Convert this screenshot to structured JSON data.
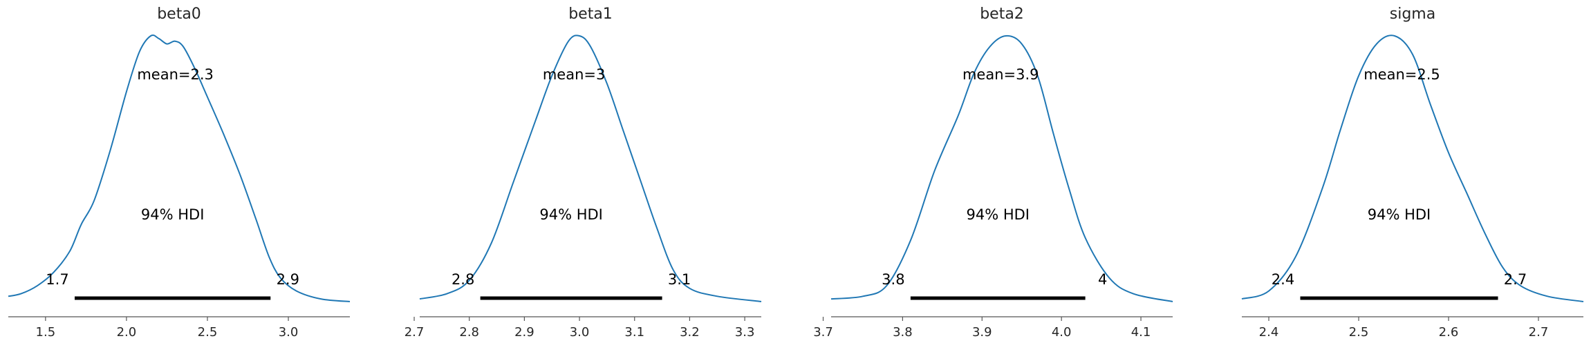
{
  "chart_data": [
    {
      "type": "line",
      "title": "beta0",
      "mean_label": "mean=2.3",
      "hdi_label": "94% HDI",
      "hdi": [
        1.68,
        2.89
      ],
      "hdi_low_label": "1.7",
      "hdi_high_label": "2.9",
      "xlim": [
        1.27,
        3.38
      ],
      "xticks": [
        1.5,
        2.0,
        2.5,
        3.0
      ],
      "xtick_labels": [
        "1.5",
        "2.0",
        "2.5",
        "3.0"
      ],
      "x": [
        1.27,
        1.35,
        1.45,
        1.55,
        1.65,
        1.72,
        1.8,
        1.9,
        2.0,
        2.08,
        2.15,
        2.2,
        2.25,
        2.3,
        2.35,
        2.42,
        2.5,
        2.6,
        2.7,
        2.8,
        2.88,
        2.95,
        3.05,
        3.2,
        3.38
      ],
      "y": [
        0.02,
        0.03,
        0.06,
        0.11,
        0.19,
        0.29,
        0.38,
        0.57,
        0.79,
        0.94,
        1.0,
        0.99,
        0.97,
        0.98,
        0.96,
        0.88,
        0.77,
        0.63,
        0.48,
        0.31,
        0.17,
        0.09,
        0.04,
        0.01,
        0.0
      ],
      "color": "#1f77b4"
    },
    {
      "type": "line",
      "title": "beta1",
      "mean_label": "mean=3",
      "hdi_label": "94% HDI",
      "hdi": [
        2.82,
        3.15
      ],
      "hdi_low_label": "2.8",
      "hdi_high_label": "3.1",
      "xlim": [
        2.71,
        3.33
      ],
      "xticks": [
        2.7,
        2.8,
        2.9,
        3.0,
        3.1,
        3.2,
        3.3
      ],
      "xtick_labels": [
        "2.7",
        "2.8",
        "2.9",
        "3.0",
        "3.1",
        "3.2",
        "3.3"
      ],
      "x": [
        2.71,
        2.76,
        2.8,
        2.84,
        2.88,
        2.92,
        2.95,
        2.98,
        3.0,
        3.02,
        3.05,
        3.08,
        3.11,
        3.14,
        3.17,
        3.2,
        3.25,
        3.33
      ],
      "y": [
        0.01,
        0.03,
        0.08,
        0.22,
        0.45,
        0.68,
        0.85,
        0.98,
        1.0,
        0.96,
        0.82,
        0.64,
        0.46,
        0.28,
        0.12,
        0.05,
        0.02,
        0.0
      ],
      "color": "#1f77b4"
    },
    {
      "type": "line",
      "title": "beta2",
      "mean_label": "mean=3.9",
      "hdi_label": "94% HDI",
      "hdi": [
        3.81,
        4.03
      ],
      "hdi_low_label": "3.8",
      "hdi_high_label": "4",
      "xlim": [
        3.71,
        4.14
      ],
      "xticks": [
        3.7,
        3.8,
        3.9,
        4.0,
        4.1
      ],
      "xtick_labels": [
        "3.7",
        "3.8",
        "3.9",
        "4.0",
        "4.1"
      ],
      "x": [
        3.71,
        3.75,
        3.78,
        3.81,
        3.84,
        3.87,
        3.89,
        3.91,
        3.93,
        3.95,
        3.97,
        3.99,
        4.01,
        4.03,
        4.06,
        4.09,
        4.14
      ],
      "y": [
        0.01,
        0.02,
        0.06,
        0.23,
        0.49,
        0.7,
        0.86,
        0.96,
        1.0,
        0.97,
        0.85,
        0.63,
        0.42,
        0.24,
        0.09,
        0.03,
        0.0
      ],
      "color": "#1f77b4"
    },
    {
      "type": "line",
      "title": "sigma",
      "mean_label": "mean=2.5",
      "hdi_label": "94% HDI",
      "hdi": [
        2.435,
        2.655
      ],
      "hdi_low_label": "2.4",
      "hdi_high_label": "2.7",
      "xlim": [
        2.37,
        2.75
      ],
      "xticks": [
        2.4,
        2.5,
        2.6,
        2.7
      ],
      "xtick_labels": [
        "2.4",
        "2.5",
        "2.6",
        "2.7"
      ],
      "x": [
        2.37,
        2.4,
        2.43,
        2.46,
        2.48,
        2.5,
        2.52,
        2.54,
        2.56,
        2.58,
        2.6,
        2.62,
        2.64,
        2.66,
        2.68,
        2.71,
        2.75
      ],
      "y": [
        0.01,
        0.04,
        0.17,
        0.43,
        0.65,
        0.85,
        0.97,
        1.0,
        0.93,
        0.74,
        0.56,
        0.41,
        0.26,
        0.13,
        0.06,
        0.02,
        0.0
      ],
      "color": "#1f77b4"
    }
  ]
}
